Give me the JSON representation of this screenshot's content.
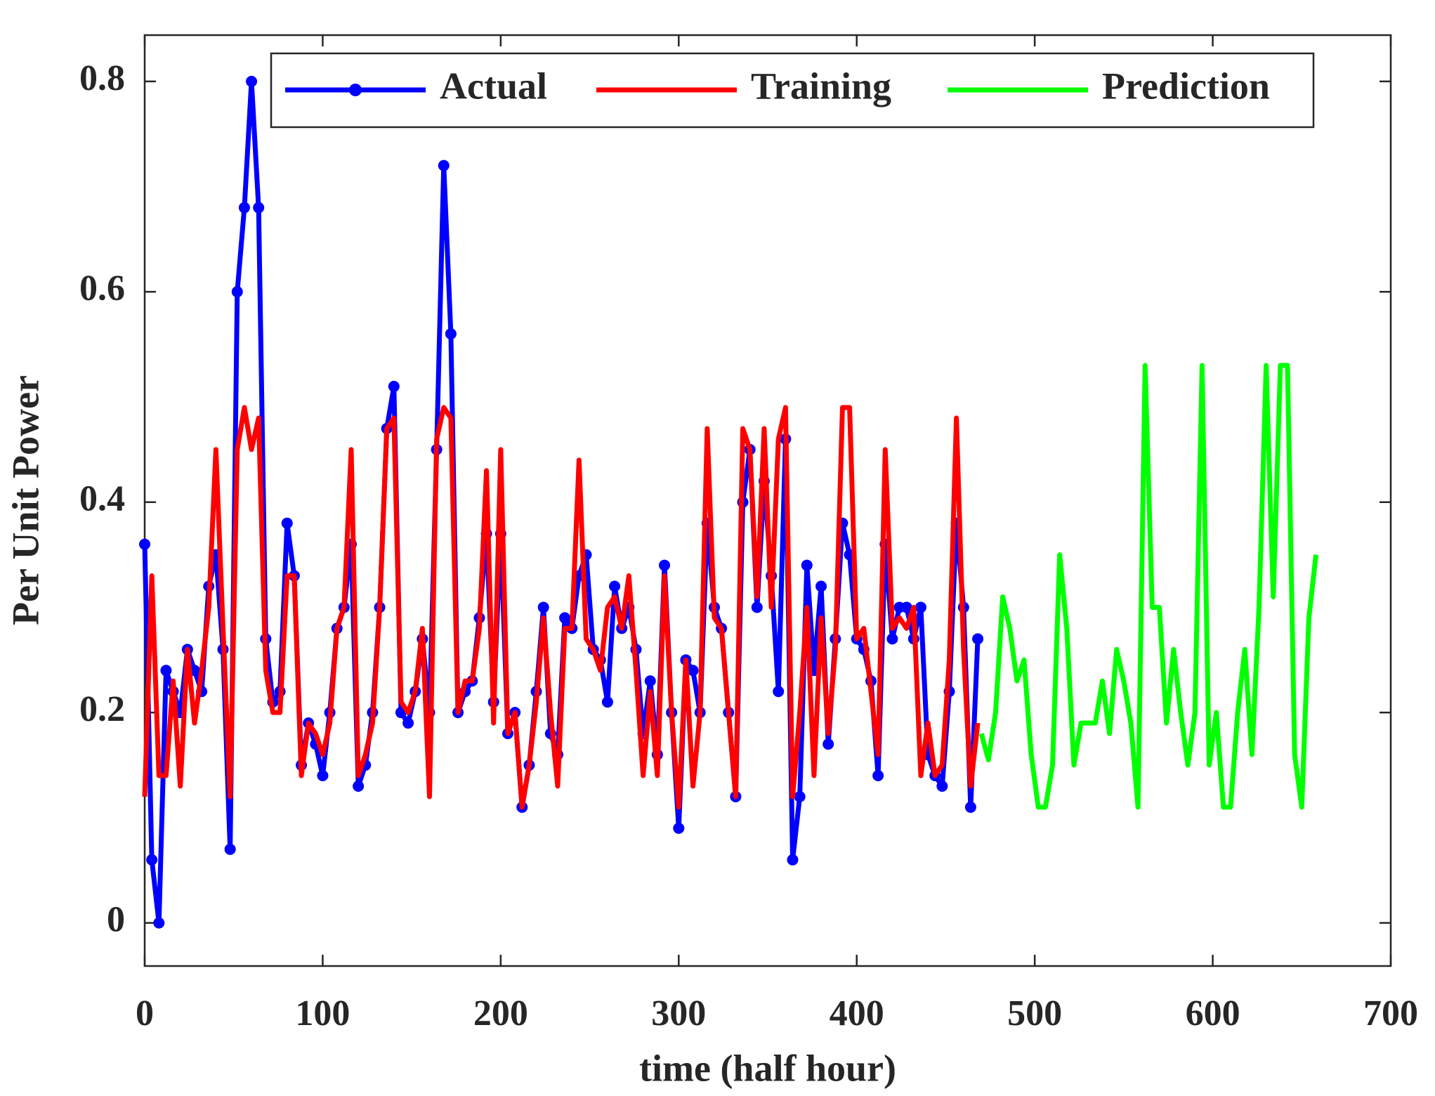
{
  "chart_data": {
    "type": "line",
    "xlabel": "time (half hour)",
    "ylabel": "Per Unit Power",
    "xlim": [
      0,
      700
    ],
    "ylim": [
      -0.041,
      0.844
    ],
    "xticks": [
      0,
      100,
      200,
      300,
      400,
      500,
      600,
      700
    ],
    "yticks": [
      0,
      0.2,
      0.4,
      0.6,
      0.8
    ],
    "legend": "top",
    "series": [
      {
        "name": "Actual",
        "color": "#0000ff",
        "marker": "o",
        "x": [
          0,
          4,
          8,
          12,
          16,
          20,
          24,
          28,
          32,
          36,
          40,
          44,
          48,
          52,
          56,
          60,
          64,
          68,
          72,
          76,
          80,
          84,
          88,
          92,
          96,
          100,
          104,
          108,
          112,
          116,
          120,
          124,
          128,
          132,
          136,
          140,
          144,
          148,
          152,
          156,
          160,
          164,
          168,
          172,
          176,
          180,
          184,
          188,
          192,
          196,
          200,
          204,
          208,
          212,
          216,
          220,
          224,
          228,
          232,
          236,
          240,
          244,
          248,
          252,
          256,
          260,
          264,
          268,
          272,
          276,
          280,
          284,
          288,
          292,
          296,
          300,
          304,
          308,
          312,
          316,
          320,
          324,
          328,
          332,
          336,
          340,
          344,
          348,
          352,
          356,
          360,
          364,
          368,
          372,
          376,
          380,
          384,
          388,
          392,
          396,
          400,
          404,
          408,
          412,
          416,
          420,
          424,
          428,
          432,
          436,
          440,
          444,
          448,
          452,
          456,
          460,
          464,
          468
        ],
        "values": [
          0.36,
          0.06,
          0.0,
          0.24,
          0.22,
          0.2,
          0.26,
          0.24,
          0.22,
          0.32,
          0.35,
          0.26,
          0.07,
          0.6,
          0.68,
          0.8,
          0.68,
          0.27,
          0.21,
          0.22,
          0.38,
          0.33,
          0.15,
          0.19,
          0.17,
          0.14,
          0.2,
          0.28,
          0.3,
          0.36,
          0.13,
          0.15,
          0.2,
          0.3,
          0.47,
          0.51,
          0.2,
          0.19,
          0.22,
          0.27,
          0.2,
          0.45,
          0.72,
          0.56,
          0.2,
          0.22,
          0.23,
          0.29,
          0.37,
          0.21,
          0.37,
          0.18,
          0.2,
          0.11,
          0.15,
          0.22,
          0.3,
          0.18,
          0.16,
          0.29,
          0.28,
          0.33,
          0.35,
          0.26,
          0.25,
          0.21,
          0.32,
          0.28,
          0.3,
          0.26,
          0.18,
          0.23,
          0.16,
          0.34,
          0.2,
          0.09,
          0.25,
          0.24,
          0.2,
          0.38,
          0.3,
          0.28,
          0.2,
          0.12,
          0.4,
          0.45,
          0.3,
          0.42,
          0.33,
          0.22,
          0.46,
          0.06,
          0.12,
          0.34,
          0.24,
          0.32,
          0.17,
          0.27,
          0.38,
          0.35,
          0.27,
          0.26,
          0.23,
          0.14,
          0.36,
          0.27,
          0.3,
          0.3,
          0.27,
          0.3,
          0.16,
          0.14,
          0.13,
          0.22,
          0.38,
          0.3,
          0.11,
          0.27
        ]
      },
      {
        "name": "Training",
        "color": "#ff0000",
        "x": [
          0,
          4,
          8,
          12,
          16,
          20,
          24,
          28,
          32,
          36,
          40,
          44,
          48,
          52,
          56,
          60,
          64,
          68,
          72,
          76,
          80,
          84,
          88,
          92,
          96,
          100,
          104,
          108,
          112,
          116,
          120,
          124,
          128,
          132,
          136,
          140,
          144,
          148,
          152,
          156,
          160,
          164,
          168,
          172,
          176,
          180,
          184,
          188,
          192,
          196,
          200,
          204,
          208,
          212,
          216,
          220,
          224,
          228,
          232,
          236,
          240,
          244,
          248,
          252,
          256,
          260,
          264,
          268,
          272,
          276,
          280,
          284,
          288,
          292,
          296,
          300,
          304,
          308,
          312,
          316,
          320,
          324,
          328,
          332,
          336,
          340,
          344,
          348,
          352,
          356,
          360,
          364,
          368,
          372,
          376,
          380,
          384,
          388,
          392,
          396,
          400,
          404,
          408,
          412,
          416,
          420,
          424,
          428,
          432,
          436,
          440,
          444,
          448,
          452,
          456,
          460,
          464,
          468
        ],
        "values": [
          0.12,
          0.33,
          0.14,
          0.14,
          0.23,
          0.13,
          0.26,
          0.19,
          0.24,
          0.3,
          0.45,
          0.28,
          0.12,
          0.45,
          0.49,
          0.45,
          0.48,
          0.24,
          0.2,
          0.2,
          0.33,
          0.33,
          0.14,
          0.19,
          0.18,
          0.16,
          0.19,
          0.28,
          0.3,
          0.45,
          0.14,
          0.16,
          0.19,
          0.3,
          0.47,
          0.48,
          0.21,
          0.2,
          0.22,
          0.28,
          0.12,
          0.46,
          0.49,
          0.48,
          0.2,
          0.23,
          0.23,
          0.28,
          0.43,
          0.19,
          0.45,
          0.18,
          0.2,
          0.11,
          0.15,
          0.21,
          0.29,
          0.2,
          0.13,
          0.28,
          0.28,
          0.44,
          0.27,
          0.26,
          0.24,
          0.3,
          0.31,
          0.28,
          0.33,
          0.24,
          0.14,
          0.22,
          0.14,
          0.33,
          0.2,
          0.11,
          0.25,
          0.13,
          0.2,
          0.47,
          0.29,
          0.28,
          0.2,
          0.12,
          0.47,
          0.45,
          0.31,
          0.47,
          0.3,
          0.46,
          0.49,
          0.12,
          0.2,
          0.3,
          0.14,
          0.29,
          0.18,
          0.26,
          0.49,
          0.49,
          0.27,
          0.28,
          0.22,
          0.16,
          0.45,
          0.28,
          0.29,
          0.28,
          0.3,
          0.14,
          0.19,
          0.14,
          0.15,
          0.25,
          0.48,
          0.26,
          0.13,
          0.19
        ]
      },
      {
        "name": "Prediction",
        "color": "#00ff00",
        "x": [
          470,
          474,
          478,
          482,
          486,
          490,
          494,
          498,
          502,
          506,
          510,
          514,
          518,
          522,
          526,
          530,
          534,
          538,
          542,
          546,
          550,
          554,
          558,
          562,
          566,
          570,
          574,
          578,
          582,
          586,
          590,
          594,
          598,
          602,
          606,
          610,
          614,
          618,
          622,
          626,
          630,
          634,
          638,
          642,
          646,
          650,
          654,
          658
        ],
        "values": [
          0.18,
          0.155,
          0.2,
          0.31,
          0.28,
          0.23,
          0.25,
          0.16,
          0.11,
          0.11,
          0.15,
          0.35,
          0.28,
          0.15,
          0.19,
          0.19,
          0.19,
          0.23,
          0.18,
          0.26,
          0.23,
          0.19,
          0.11,
          0.53,
          0.3,
          0.3,
          0.19,
          0.26,
          0.2,
          0.15,
          0.2,
          0.53,
          0.15,
          0.2,
          0.11,
          0.11,
          0.2,
          0.26,
          0.16,
          0.3,
          0.53,
          0.31,
          0.53,
          0.53,
          0.16,
          0.11,
          0.29,
          0.35
        ]
      }
    ]
  }
}
